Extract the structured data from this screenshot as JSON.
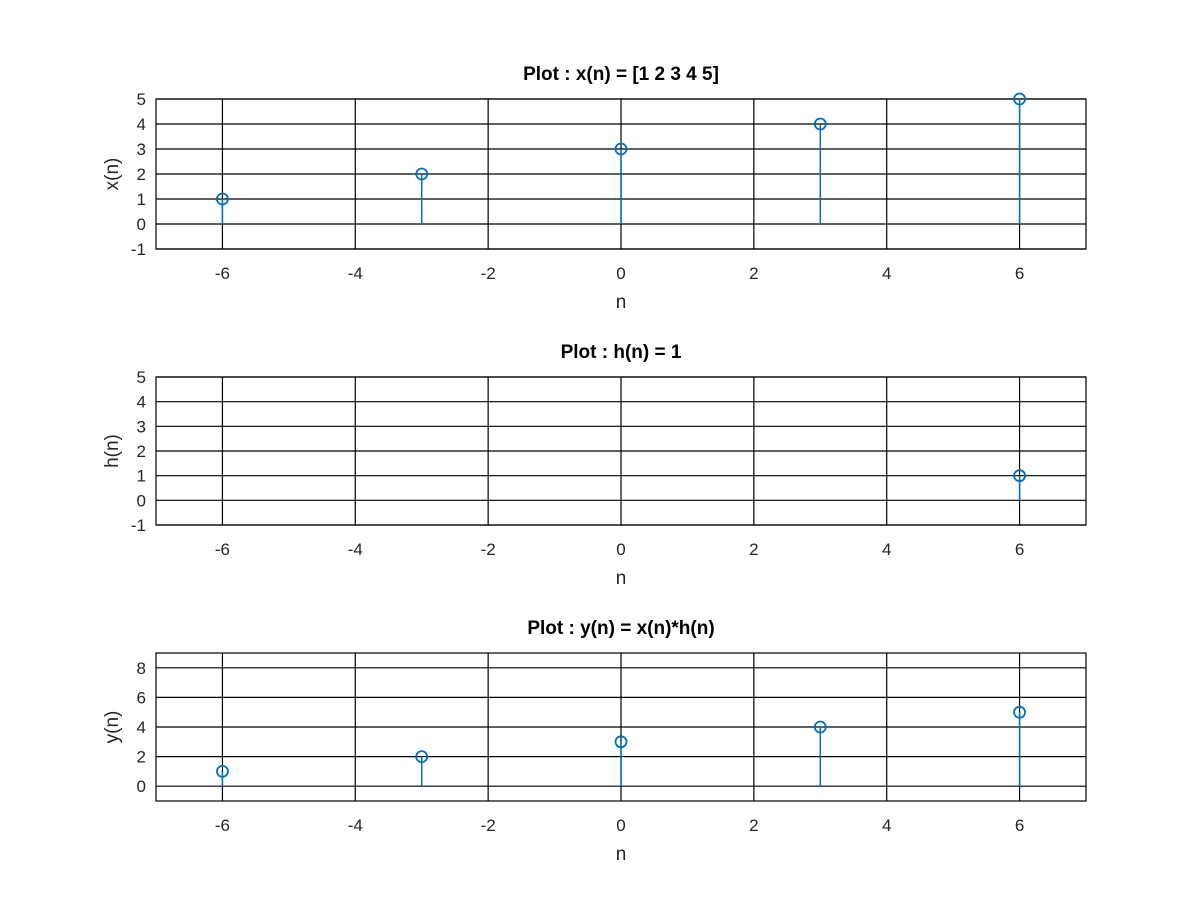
{
  "colors": {
    "stem": "#0072BD",
    "grid": "#000000",
    "background": "#ffffff"
  },
  "chart_data": [
    {
      "type": "stem",
      "title": "Plot : x(n) = [1 2 3 4 5]",
      "xlabel": "n",
      "ylabel": "x(n)",
      "xlim": [
        -7,
        7
      ],
      "ylim": [
        -1,
        5
      ],
      "xticks": [
        -6,
        -4,
        -2,
        0,
        2,
        4,
        6
      ],
      "yticks": [
        -1,
        0,
        1,
        2,
        3,
        4,
        5
      ],
      "grid": true,
      "x": [
        -6,
        -3,
        0,
        3,
        6
      ],
      "y": [
        1,
        2,
        3,
        4,
        5
      ]
    },
    {
      "type": "stem",
      "title": "Plot : h(n) = 1",
      "xlabel": "n",
      "ylabel": "h(n)",
      "xlim": [
        -7,
        7
      ],
      "ylim": [
        -1,
        5
      ],
      "xticks": [
        -6,
        -4,
        -2,
        0,
        2,
        4,
        6
      ],
      "yticks": [
        -1,
        0,
        1,
        2,
        3,
        4,
        5
      ],
      "grid": true,
      "x": [
        6
      ],
      "y": [
        1
      ]
    },
    {
      "type": "stem",
      "title": "Plot : y(n) = x(n)*h(n)",
      "xlabel": "n",
      "ylabel": "y(n)",
      "xlim": [
        -7,
        7
      ],
      "ylim": [
        -1,
        9
      ],
      "xticks": [
        -6,
        -4,
        -2,
        0,
        2,
        4,
        6
      ],
      "yticks": [
        0,
        2,
        4,
        6,
        8
      ],
      "grid": true,
      "x": [
        -6,
        -3,
        0,
        3,
        6
      ],
      "y": [
        1,
        2,
        3,
        4,
        5
      ]
    }
  ]
}
